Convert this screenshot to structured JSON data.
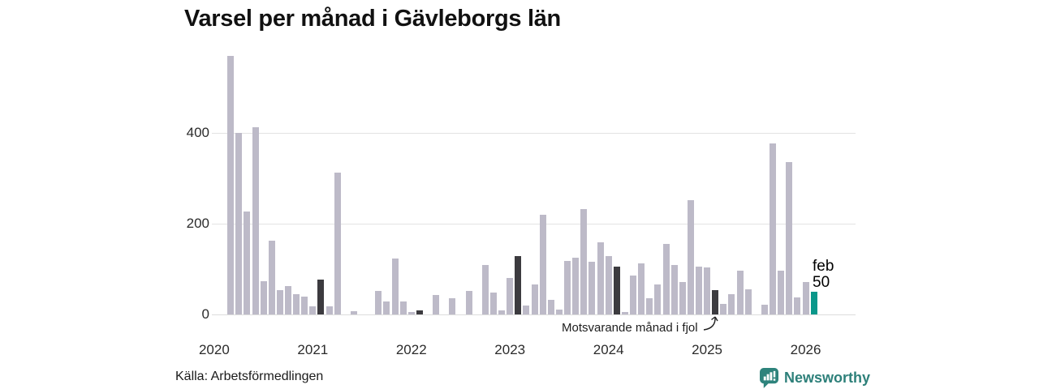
{
  "title": "Varsel per månad i Gävleborgs län",
  "source": "Källa: Arbetsförmedlingen",
  "brand": {
    "name": "Newsworthy"
  },
  "annotation": {
    "text": "Motsvarande månad i fjol",
    "target_month": "2025-02"
  },
  "current_point_label": {
    "line1": "feb",
    "line2": "50"
  },
  "colors": {
    "bar_default": "#bdbac8",
    "bar_prev_year_month": "#3c3b3f",
    "bar_current": "#0a978a",
    "grid": "#e3e3e3",
    "baseline": "#dcdcdc",
    "brand_teal": "#2e807a",
    "title_text": "#111111",
    "axis_text": "#2b2b2b"
  },
  "chart_data": {
    "type": "bar",
    "title": "Varsel per månad i Gävleborgs län",
    "xlabel": "",
    "ylabel": "",
    "ylim": [
      0,
      600
    ],
    "yticks": [
      0,
      200,
      400
    ],
    "xticks": [
      "2020",
      "2021",
      "2022",
      "2023",
      "2024",
      "2025",
      "2026"
    ],
    "grid": "horizontal",
    "legend": "none",
    "months": [
      "2020-03",
      "2020-04",
      "2020-05",
      "2020-06",
      "2020-07",
      "2020-08",
      "2020-09",
      "2020-10",
      "2020-11",
      "2020-12",
      "2021-01",
      "2021-02",
      "2021-03",
      "2021-04",
      "2021-05",
      "2021-06",
      "2021-07",
      "2021-08",
      "2021-09",
      "2021-10",
      "2021-11",
      "2021-12",
      "2022-01",
      "2022-02",
      "2022-03",
      "2022-04",
      "2022-05",
      "2022-06",
      "2022-07",
      "2022-08",
      "2022-09",
      "2022-10",
      "2022-11",
      "2022-12",
      "2023-01",
      "2023-02",
      "2023-03",
      "2023-04",
      "2023-05",
      "2023-06",
      "2023-07",
      "2023-08",
      "2023-09",
      "2023-10",
      "2023-11",
      "2023-12",
      "2024-01",
      "2024-02",
      "2024-03",
      "2024-04",
      "2024-05",
      "2024-06",
      "2024-07",
      "2024-08",
      "2024-09",
      "2024-10",
      "2024-11",
      "2024-12",
      "2025-01",
      "2025-02",
      "2025-03",
      "2025-04",
      "2025-05",
      "2025-06",
      "2025-07",
      "2025-08",
      "2025-09",
      "2025-10",
      "2025-11",
      "2025-12",
      "2026-01",
      "2026-02"
    ],
    "values": [
      570,
      400,
      227,
      413,
      73,
      162,
      54,
      63,
      44,
      39,
      18,
      77,
      17,
      313,
      0,
      8,
      0,
      0,
      52,
      29,
      123,
      29,
      5,
      9,
      0,
      43,
      0,
      35,
      0,
      52,
      0,
      110,
      48,
      9,
      80,
      129,
      19,
      67,
      220,
      33,
      10,
      118,
      125,
      233,
      116,
      159,
      129,
      105,
      5,
      85,
      112,
      36,
      67,
      156,
      109,
      71,
      253,
      105,
      103,
      53,
      23,
      44,
      96,
      55,
      0,
      21,
      377,
      97,
      337,
      38,
      72,
      50
    ],
    "dark_months_same_month_previous_years": [
      "2021-02",
      "2022-02",
      "2023-02",
      "2024-02",
      "2025-02"
    ],
    "current_month": "2026-02",
    "current_month_label": "feb",
    "current_month_value": 50
  }
}
